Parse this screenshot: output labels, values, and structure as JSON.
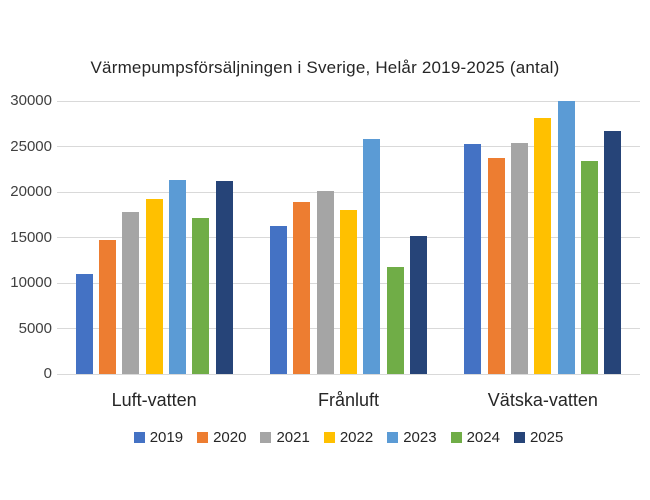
{
  "chart_data": {
    "type": "bar",
    "title": "Värmepumpsförsäljningen i Sverige, Helår 2019-2025 (antal)",
    "categories": [
      "Luft-vatten",
      "Frånluft",
      "Vätska-vatten"
    ],
    "series": [
      {
        "name": "2019",
        "color": "#4472C4",
        "values": [
          11000,
          16300,
          25300
        ]
      },
      {
        "name": "2020",
        "color": "#ED7D31",
        "values": [
          14700,
          18900,
          23700
        ]
      },
      {
        "name": "2021",
        "color": "#A5A5A5",
        "values": [
          17800,
          20100,
          25400
        ]
      },
      {
        "name": "2022",
        "color": "#FFC000",
        "values": [
          19200,
          18000,
          28100
        ]
      },
      {
        "name": "2023",
        "color": "#5B9BD5",
        "values": [
          21300,
          25800,
          30000
        ]
      },
      {
        "name": "2024",
        "color": "#70AD47",
        "values": [
          17100,
          11800,
          23400
        ]
      },
      {
        "name": "2025",
        "color": "#264478",
        "values": [
          21200,
          15200,
          26700
        ]
      }
    ],
    "ylim": [
      0,
      30000
    ],
    "ytick_step": 5000,
    "ytick_labels": [
      "0",
      "5000",
      "10000",
      "15000",
      "20000",
      "25000",
      "30000"
    ],
    "xlabel": "",
    "ylabel": "",
    "grid": true,
    "legend_position": "bottom",
    "grid_color": "#D9D9D9",
    "title_color": "#262626",
    "tick_label_color": "#404040",
    "background": "#FFFFFF"
  }
}
